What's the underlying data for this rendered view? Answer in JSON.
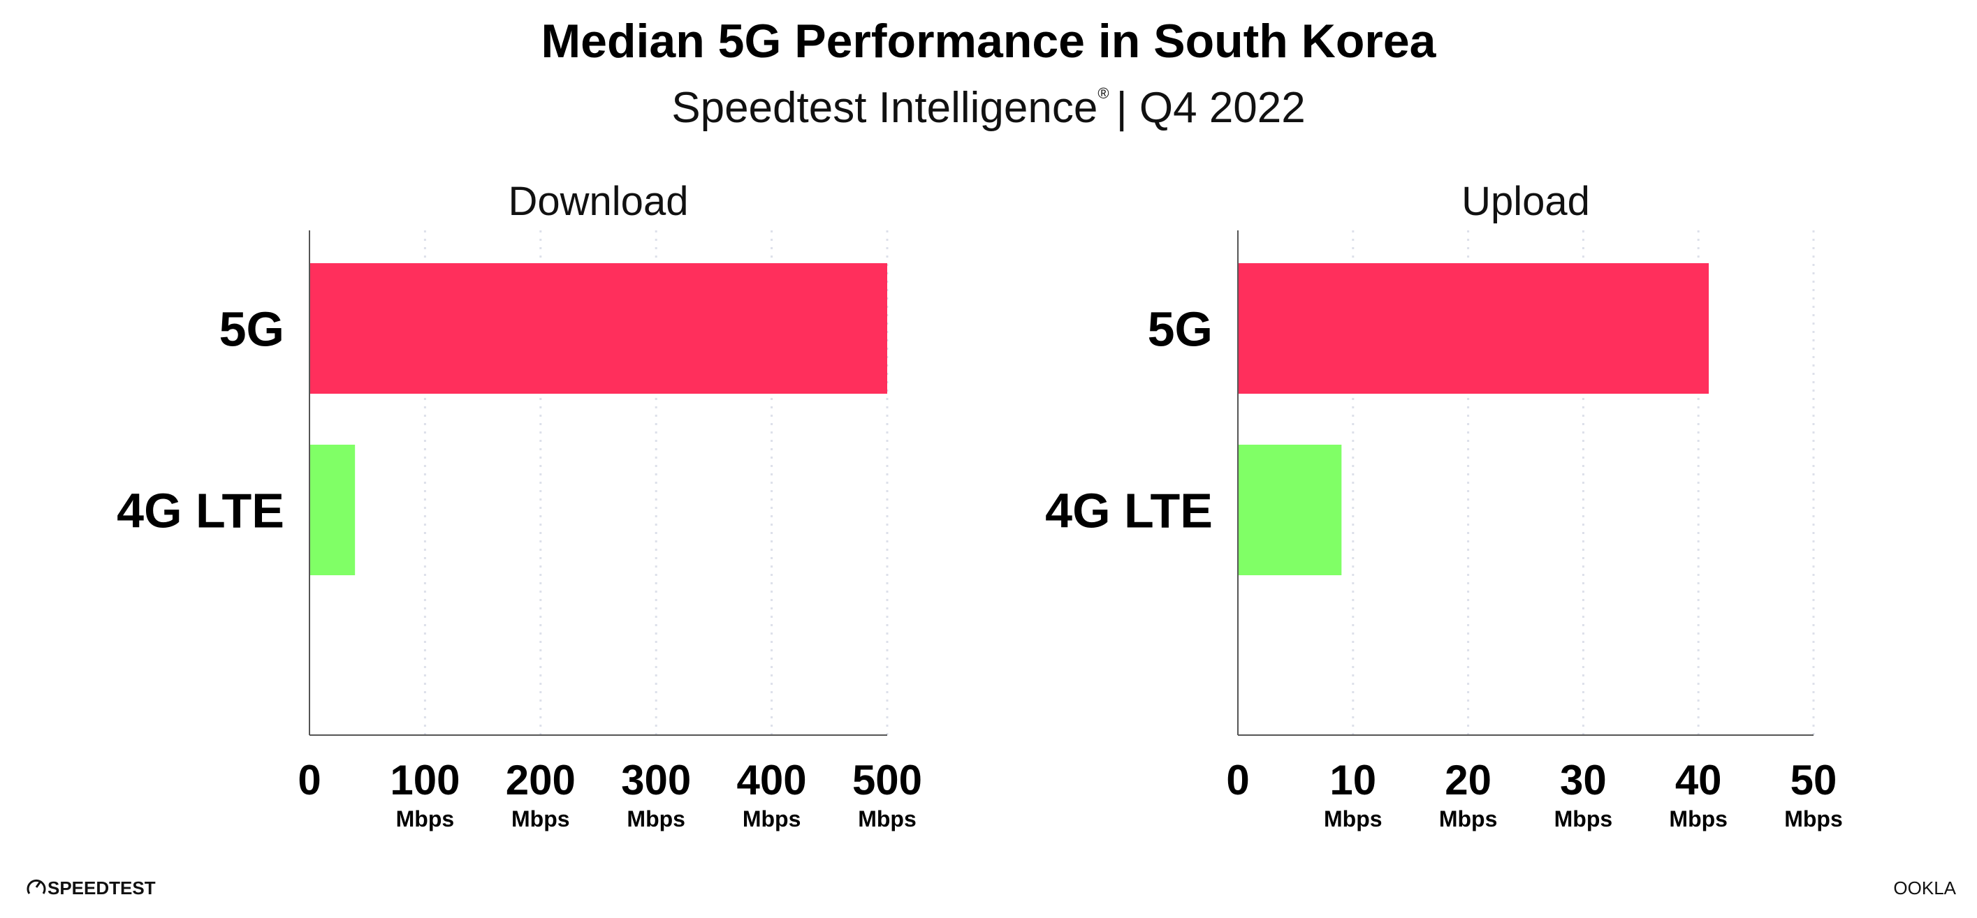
{
  "header": {
    "title": "Median 5G Performance in South Korea",
    "subtitle": "Speedtest Intelligence",
    "subtitle_mark": "®",
    "subtitle_period": "| Q4 2022"
  },
  "footer": {
    "left_logo": "SPEEDTEST",
    "right_logo": "OOKLA"
  },
  "colors": {
    "5G": "#ff2f5c",
    "4G LTE": "#80ff66",
    "grid": "#dde0ea",
    "axis": "#555555"
  },
  "chart_data": [
    {
      "type": "bar",
      "orientation": "horizontal",
      "title": "Download",
      "categories": [
        "5G",
        "4G LTE"
      ],
      "values": [
        500,
        39.4
      ],
      "xlim": [
        0,
        500
      ],
      "ticks": [
        0,
        100,
        200,
        300,
        400,
        500
      ],
      "tick_unit": "Mbps",
      "grid": true
    },
    {
      "type": "bar",
      "orientation": "horizontal",
      "title": "Upload",
      "categories": [
        "5G",
        "4G LTE"
      ],
      "values": [
        40.9,
        9.0
      ],
      "xlim": [
        0,
        50
      ],
      "ticks": [
        0,
        10,
        20,
        30,
        40,
        50
      ],
      "tick_unit": "Mbps",
      "grid": true
    }
  ]
}
